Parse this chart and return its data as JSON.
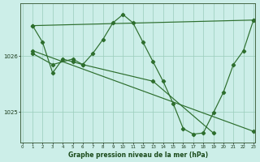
{
  "xlabel": "Graphe pression niveau de la mer (hPa)",
  "bg_color": "#cceee8",
  "grid_color": "#99ccbb",
  "line_color": "#2d6e2d",
  "xmin": 0,
  "xmax": 23,
  "ymin": 1024.45,
  "ymax": 1026.95,
  "yticks": [
    1025,
    1026
  ],
  "xticks": [
    0,
    1,
    2,
    3,
    4,
    5,
    6,
    7,
    8,
    9,
    10,
    11,
    12,
    13,
    14,
    15,
    16,
    17,
    18,
    19,
    20,
    21,
    22,
    23
  ],
  "line1_x": [
    1,
    2,
    3,
    4,
    5,
    6,
    7,
    8,
    9,
    10,
    11,
    12,
    13,
    14,
    15,
    16,
    17,
    18,
    19,
    20,
    21,
    22,
    23
  ],
  "line1_y": [
    1026.55,
    1026.25,
    1025.7,
    1025.95,
    1025.9,
    1025.85,
    1026.05,
    1026.3,
    1026.6,
    1026.75,
    1026.6,
    1026.25,
    1025.9,
    1025.55,
    1025.15,
    1024.7,
    1024.6,
    1024.62,
    1024.98,
    1025.35,
    1025.85,
    1026.1,
    1026.65
  ],
  "line2_x": [
    1,
    23
  ],
  "line2_y": [
    1026.55,
    1026.65
  ],
  "line3_x": [
    1,
    23
  ],
  "line3_y": [
    1026.1,
    1024.65
  ],
  "line4_x": [
    1,
    3,
    5,
    6,
    13,
    19
  ],
  "line4_y": [
    1026.05,
    1025.85,
    1025.95,
    1025.85,
    1025.55,
    1024.62
  ]
}
